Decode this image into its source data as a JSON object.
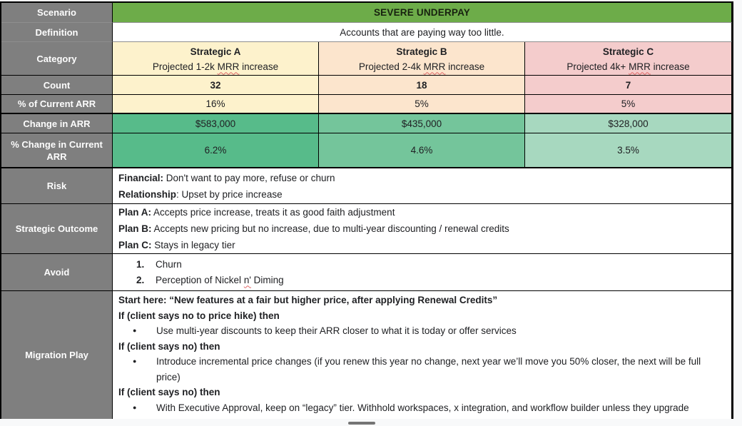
{
  "colors": {
    "page_background": "#f8f9fa",
    "label_column_bg": "#7f7f7f",
    "scenario_header_bg": "#6dac49",
    "strategic_a_bg": "#fdf2cc",
    "strategic_b_bg": "#fce5cd",
    "strategic_c_bg": "#f4cccc",
    "arr_green_a": "#57bb8a",
    "arr_green_b": "#74c59b",
    "arr_green_c": "#a7d8bf",
    "border": "#000000",
    "spellcheck_squiggle": "#e06666"
  },
  "rows": {
    "scenario": {
      "label": "Scenario",
      "value": "SEVERE UNDERPAY"
    },
    "definition": {
      "label": "Definition",
      "value": "Accounts that are paying way too little."
    },
    "category": {
      "label": "Category",
      "cells": [
        {
          "title": "Strategic A",
          "sub_prefix": "Projected 1-2k ",
          "sub_word": "MRR",
          "sub_suffix": " increase"
        },
        {
          "title": "Strategic B",
          "sub_prefix": "Projected 2-4k ",
          "sub_word": "MRR",
          "sub_suffix": " increase"
        },
        {
          "title": "Strategic C",
          "sub_prefix": "Projected 4k+ ",
          "sub_word": "MRR",
          "sub_suffix": " increase"
        }
      ]
    },
    "count": {
      "label": "Count",
      "values": [
        "32",
        "18",
        "7"
      ]
    },
    "pct_of_arr": {
      "label": "% of Current ARR",
      "values": [
        "16%",
        "5%",
        "5%"
      ]
    },
    "change_in_arr": {
      "label": "Change in ARR",
      "values": [
        "$583,000",
        "$435,000",
        "$328,000"
      ]
    },
    "pct_change": {
      "label": "% Change in Current ARR",
      "values": [
        "6.2%",
        "4.6%",
        "3.5%"
      ]
    },
    "risk": {
      "label": "Risk",
      "lines": [
        {
          "bold": "Financial:",
          "text": " Don't want to pay more, refuse or churn"
        },
        {
          "bold": "Relationship",
          "text": ": Upset by price increase"
        }
      ]
    },
    "strategic_outcome": {
      "label": "Strategic Outcome",
      "lines": [
        {
          "bold": "Plan A:",
          "text": " Accepts price increase, treats it as good faith adjustment"
        },
        {
          "bold": "Plan B:",
          "text": " Accepts new pricing but no increase, due to multi-year discounting / renewal credits"
        },
        {
          "bold": "Plan C:",
          "text": " Stays in legacy tier"
        }
      ]
    },
    "avoid": {
      "label": "Avoid",
      "items": [
        {
          "num": "1.",
          "text_prefix": "Churn",
          "squiggle_word": "",
          "text_suffix": ""
        },
        {
          "num": "2.",
          "text_prefix": "Perception of Nickel ",
          "squiggle_word": "n'",
          "text_suffix": " Diming"
        }
      ]
    },
    "migration_play": {
      "label": "Migration Play",
      "lines": [
        {
          "type": "bold",
          "text": "Start here: “New features at a fair but higher price, after applying Renewal Credits”"
        },
        {
          "type": "bold",
          "text": "If (client says no to price hike) then"
        },
        {
          "type": "bullet",
          "bullet": "●",
          "text": "Use multi-year discounts to keep their ARR closer to what it is today or offer services"
        },
        {
          "type": "bold",
          "text": "If (client says no) then"
        },
        {
          "type": "bullet",
          "bullet": "●",
          "text": "Introduce incremental price changes (if you renew this year no change, next year we’ll move you 50% closer, the next will be full price)"
        },
        {
          "type": "bold",
          "text": "If (client says no) then"
        },
        {
          "type": "bullet",
          "bullet": "●",
          "text": "With Executive Approval, keep on “legacy” tier. Withhold workspaces, x integration, and workflow builder unless they upgrade"
        }
      ]
    }
  }
}
